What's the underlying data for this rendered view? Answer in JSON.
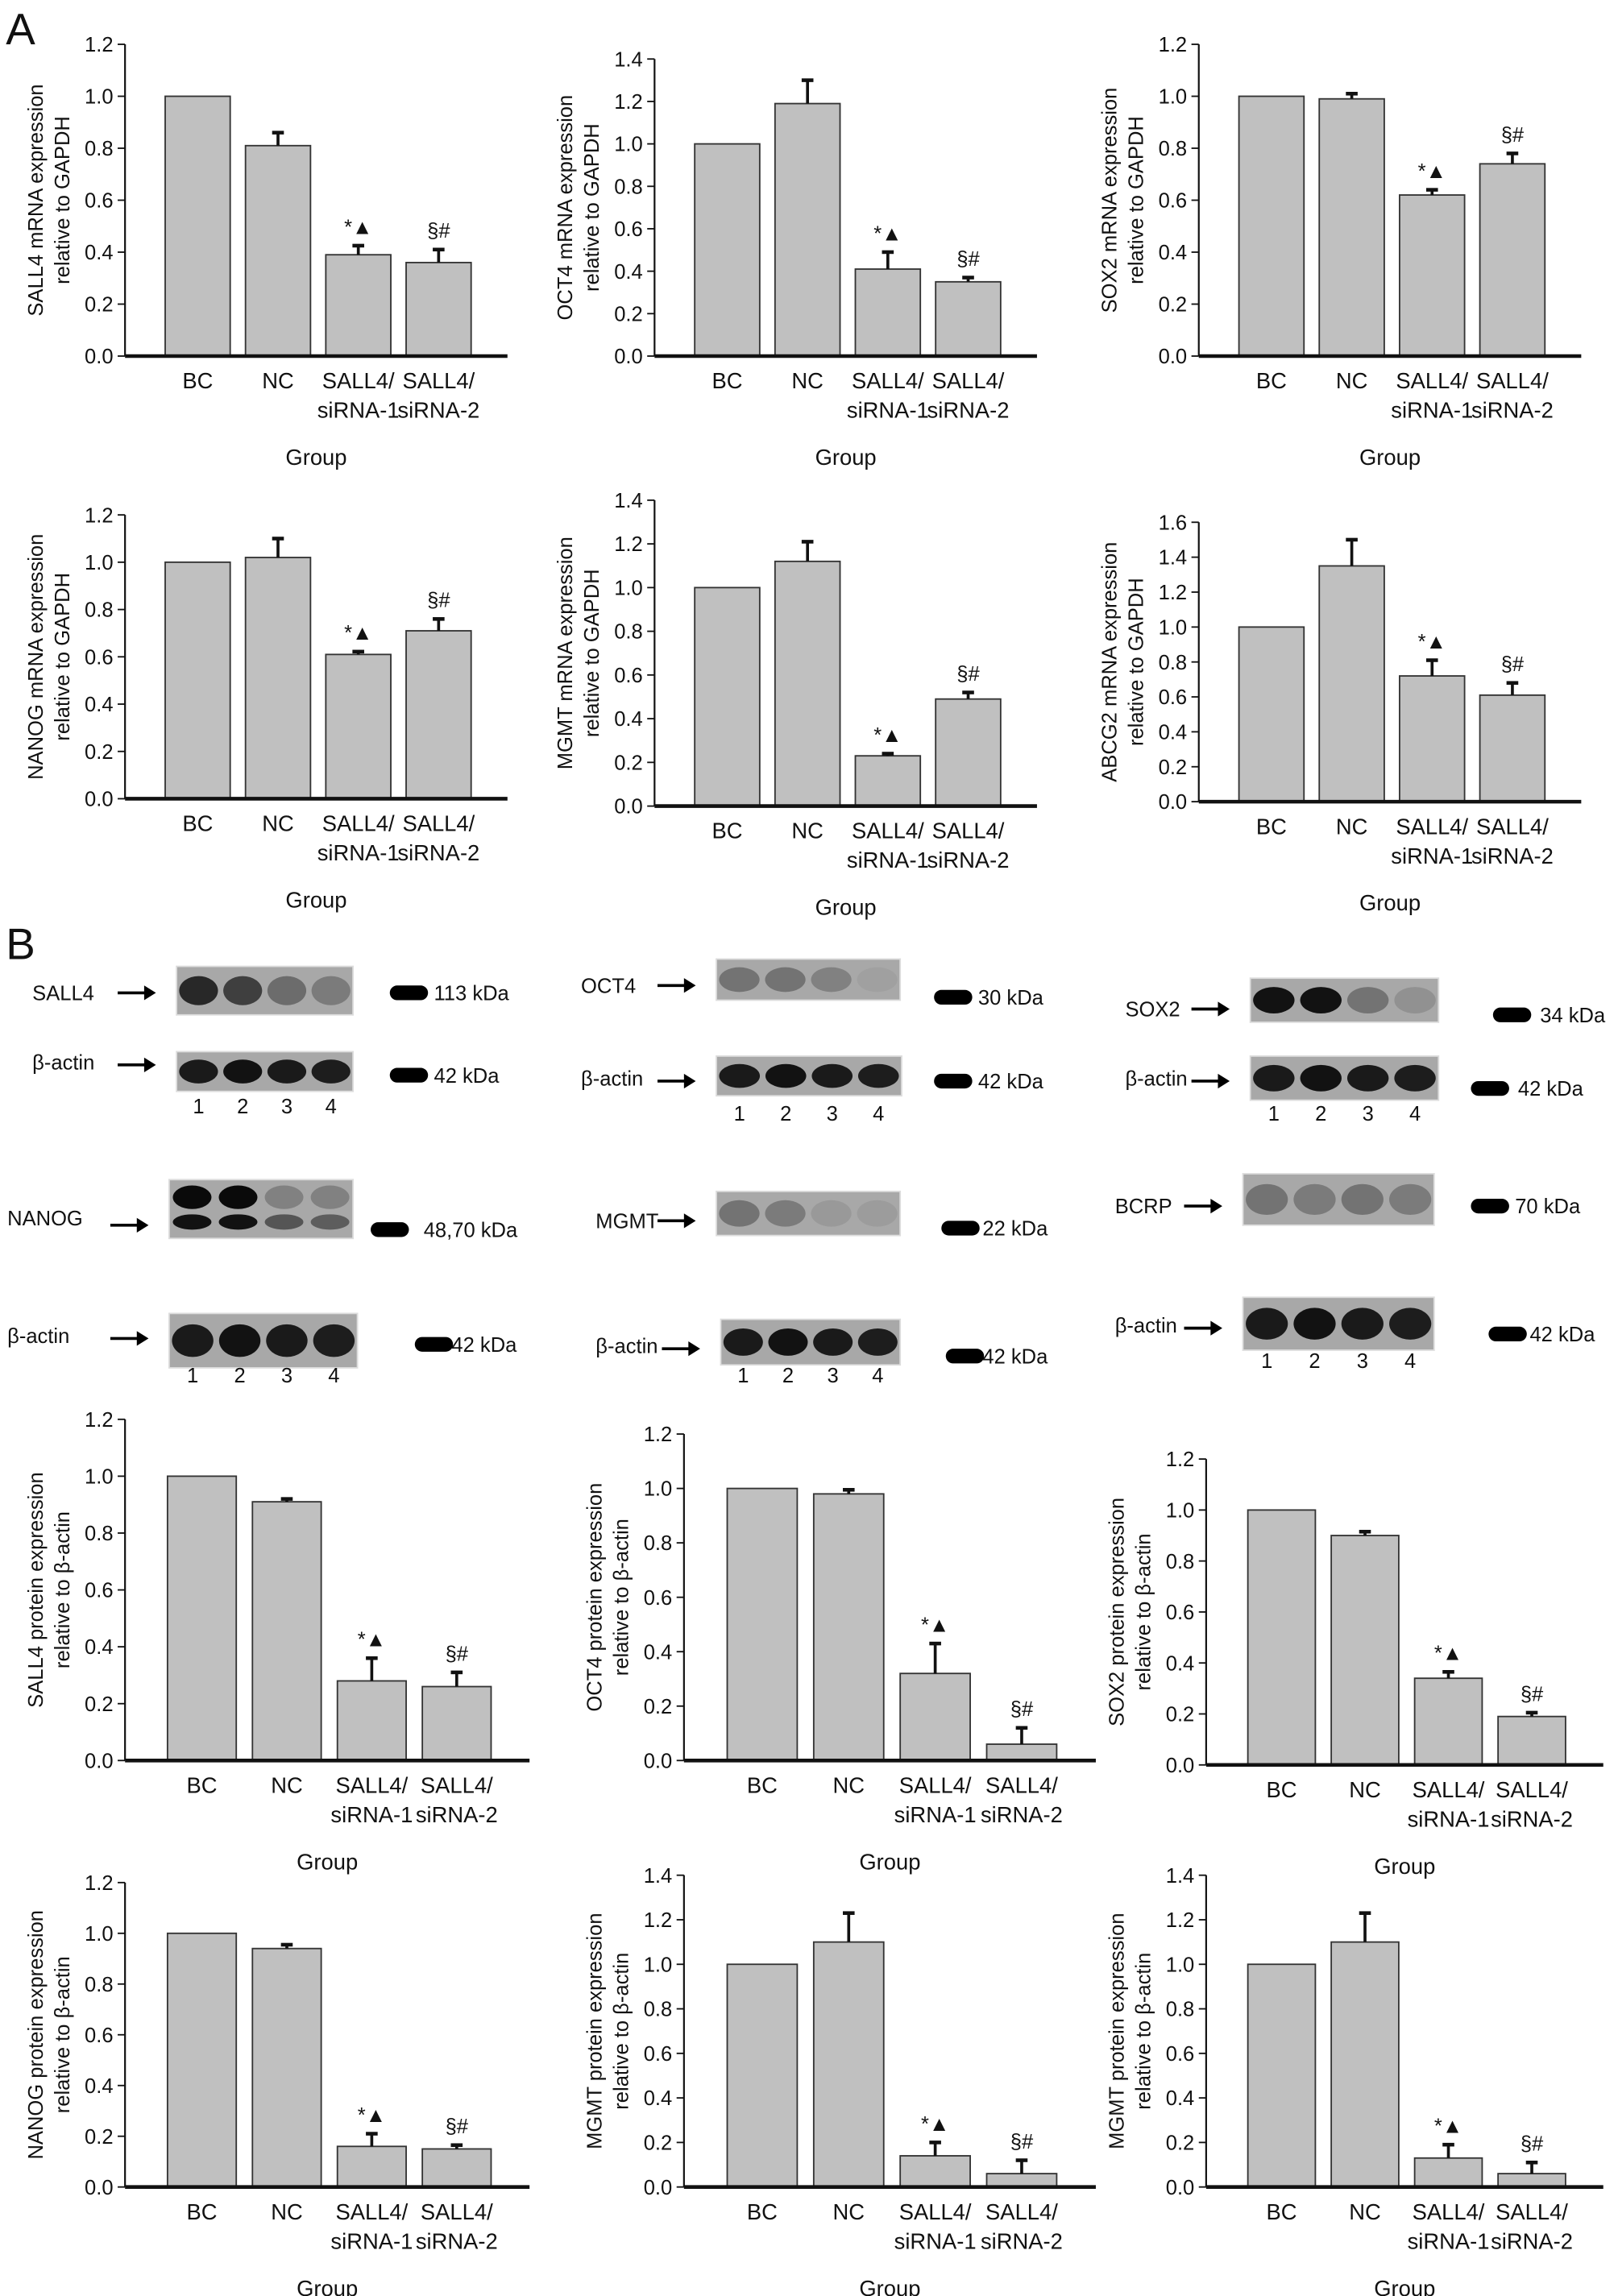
{
  "panel_labels": {
    "a": "A",
    "b": "B"
  },
  "chart_data": [
    {
      "type": "bar",
      "id": "sall4-mrna",
      "ylabel": [
        "SALL4 mRNA expression",
        "relative to GAPDH"
      ],
      "xlabel": "Group",
      "categories": [
        "BC",
        "NC",
        "SALL4/ siRNA-1",
        "SALL4/ siRNA-2"
      ],
      "values": [
        1.0,
        0.81,
        0.39,
        0.36
      ],
      "errors": [
        0,
        0.05,
        0.035,
        0.05
      ],
      "annotations": [
        "",
        "",
        "*▲",
        "§#"
      ],
      "ylim": [
        0,
        1.2
      ],
      "ystep": 0.2
    },
    {
      "type": "bar",
      "id": "oct4-mrna",
      "ylabel": [
        "OCT4 mRNA expression",
        "relative to GAPDH"
      ],
      "xlabel": "Group",
      "categories": [
        "BC",
        "NC",
        "SALL4/ siRNA-1",
        "SALL4/ siRNA-2"
      ],
      "values": [
        1.0,
        1.19,
        0.41,
        0.35
      ],
      "errors": [
        0,
        0.11,
        0.08,
        0.02
      ],
      "annotations": [
        "",
        "",
        "*▲",
        "§#"
      ],
      "ylim": [
        0,
        1.4
      ],
      "ystep": 0.2
    },
    {
      "type": "bar",
      "id": "sox2-mrna",
      "ylabel": [
        "SOX2 mRNA expression",
        "relative to GAPDH"
      ],
      "xlabel": "Group",
      "categories": [
        "BC",
        "NC",
        "SALL4/ siRNA-1",
        "SALL4/ siRNA-2"
      ],
      "values": [
        1.0,
        0.99,
        0.62,
        0.74
      ],
      "errors": [
        0,
        0.02,
        0.02,
        0.04
      ],
      "annotations": [
        "",
        "",
        "*▲",
        "§#"
      ],
      "ylim": [
        0,
        1.2
      ],
      "ystep": 0.2
    },
    {
      "type": "bar",
      "id": "nanog-mrna",
      "ylabel": [
        "NANOG mRNA expression",
        "relative to GAPDH"
      ],
      "xlabel": "Group",
      "categories": [
        "BC",
        "NC",
        "SALL4/ siRNA-1",
        "SALL4/ siRNA-2"
      ],
      "values": [
        1.0,
        1.02,
        0.61,
        0.71
      ],
      "errors": [
        0,
        0.08,
        0.012,
        0.05
      ],
      "annotations": [
        "",
        "",
        "*▲",
        "§#"
      ],
      "ylim": [
        0,
        1.2
      ],
      "ystep": 0.2
    },
    {
      "type": "bar",
      "id": "mgmt-mrna",
      "ylabel": [
        "MGMT mRNA expression",
        "relative to GAPDH"
      ],
      "xlabel": "Group",
      "categories": [
        "BC",
        "NC",
        "SALL4/ siRNA-1",
        "SALL4/ siRNA-2"
      ],
      "values": [
        1.0,
        1.12,
        0.23,
        0.49
      ],
      "errors": [
        0,
        0.09,
        0.01,
        0.03
      ],
      "annotations": [
        "",
        "",
        "*▲",
        "§#"
      ],
      "ylim": [
        0,
        1.4
      ],
      "ystep": 0.2
    },
    {
      "type": "bar",
      "id": "abcg2-mrna",
      "ylabel": [
        "ABCG2 mRNA expression",
        "relative to GAPDH"
      ],
      "xlabel": "Group",
      "categories": [
        "BC",
        "NC",
        "SALL4/ siRNA-1",
        "SALL4/ siRNA-2"
      ],
      "values": [
        1.0,
        1.35,
        0.72,
        0.61
      ],
      "errors": [
        0,
        0.15,
        0.09,
        0.07
      ],
      "annotations": [
        "",
        "",
        "*▲",
        "§#"
      ],
      "ylim": [
        0,
        1.6
      ],
      "ystep": 0.2
    },
    {
      "type": "bar",
      "id": "sall4-protein",
      "ylabel": [
        "SALL4 protein expression",
        "relative to β-actin"
      ],
      "xlabel": "Group",
      "categories": [
        "BC",
        "NC",
        "SALL4/ siRNA-1",
        "SALL4/ siRNA-2"
      ],
      "values": [
        1.0,
        0.91,
        0.28,
        0.26
      ],
      "errors": [
        0,
        0.01,
        0.08,
        0.05
      ],
      "annotations": [
        "",
        "",
        "*▲",
        "§#"
      ],
      "ylim": [
        0,
        1.2
      ],
      "ystep": 0.2
    },
    {
      "type": "bar",
      "id": "oct4-protein",
      "ylabel": [
        "OCT4 protein expression",
        "relative to β-actin"
      ],
      "xlabel": "Group",
      "categories": [
        "BC",
        "NC",
        "SALL4/ siRNA-1",
        "SALL4/ siRNA-2"
      ],
      "values": [
        1.0,
        0.98,
        0.32,
        0.06
      ],
      "errors": [
        0,
        0.015,
        0.11,
        0.06
      ],
      "annotations": [
        "",
        "",
        "*▲",
        "§#"
      ],
      "ylim": [
        0,
        1.2
      ],
      "ystep": 0.2
    },
    {
      "type": "bar",
      "id": "sox2-protein",
      "ylabel": [
        "SOX2 protein expression",
        "relative to β-actin"
      ],
      "xlabel": "Group",
      "categories": [
        "BC",
        "NC",
        "SALL4/ siRNA-1",
        "SALL4/ siRNA-2"
      ],
      "values": [
        1.0,
        0.9,
        0.34,
        0.19
      ],
      "errors": [
        0,
        0.015,
        0.025,
        0.015
      ],
      "annotations": [
        "",
        "",
        "*▲",
        "§#"
      ],
      "ylim": [
        0,
        1.2
      ],
      "ystep": 0.2
    },
    {
      "type": "bar",
      "id": "nanog-protein",
      "ylabel": [
        "NANOG protein expression",
        "relative to β-actin"
      ],
      "xlabel": "Group",
      "categories": [
        "BC",
        "NC",
        "SALL4/ siRNA-1",
        "SALL4/ siRNA-2"
      ],
      "values": [
        1.0,
        0.94,
        0.16,
        0.15
      ],
      "errors": [
        0,
        0.015,
        0.05,
        0.015
      ],
      "annotations": [
        "",
        "",
        "*▲",
        "§#"
      ],
      "ylim": [
        0,
        1.2
      ],
      "ystep": 0.2
    },
    {
      "type": "bar",
      "id": "mgmt-protein",
      "ylabel": [
        "MGMT protein expression",
        "relative to β-actin"
      ],
      "xlabel": "Group",
      "categories": [
        "BC",
        "NC",
        "SALL4/ siRNA-1",
        "SALL4/ siRNA-2"
      ],
      "values": [
        1.0,
        1.1,
        0.14,
        0.06
      ],
      "errors": [
        0,
        0.13,
        0.06,
        0.06
      ],
      "annotations": [
        "",
        "",
        "*▲",
        "§#"
      ],
      "ylim": [
        0,
        1.4
      ],
      "ystep": 0.2
    },
    {
      "type": "bar",
      "id": "mgmt-protein-2",
      "ylabel": [
        "MGMT protein expression",
        "relative to β-actin"
      ],
      "xlabel": "Group",
      "categories": [
        "BC",
        "NC",
        "SALL4/ siRNA-1",
        "SALL4/ siRNA-2"
      ],
      "values": [
        1.0,
        1.1,
        0.13,
        0.06
      ],
      "errors": [
        0,
        0.13,
        0.06,
        0.05
      ],
      "annotations": [
        "",
        "",
        "*▲",
        "§#"
      ],
      "ylim": [
        0,
        1.4
      ],
      "ystep": 0.2
    }
  ],
  "blots": [
    {
      "target": "SALL4",
      "target_kda": "113 kDa",
      "target_intensity": [
        0.85,
        0.7,
        0.4,
        0.3
      ],
      "control": "β-actin",
      "control_kda": "42 kDa",
      "lanes": [
        "1",
        "2",
        "3",
        "4"
      ]
    },
    {
      "target": "OCT4",
      "target_kda": "30 kDa",
      "target_intensity": [
        0.35,
        0.35,
        0.25,
        0.05
      ],
      "control": "β-actin",
      "control_kda": "42 kDa",
      "lanes": [
        "1",
        "2",
        "3",
        "4"
      ]
    },
    {
      "target": "SOX2",
      "target_kda": "34 kDa",
      "target_intensity": [
        1.0,
        1.0,
        0.35,
        0.15
      ],
      "control": "β-actin",
      "control_kda": "42 kDa",
      "lanes": [
        "1",
        "2",
        "3",
        "4"
      ]
    },
    {
      "target": "NANOG",
      "target_kda": "48,70 kDa",
      "target_intensity": [
        1.0,
        1.0,
        0.55,
        0.5
      ],
      "control": "β-actin",
      "control_kda": "42 kDa",
      "lanes": [
        "1",
        "2",
        "3",
        "4"
      ]
    },
    {
      "target": "MGMT",
      "target_kda": "22 kDa",
      "target_intensity": [
        0.35,
        0.3,
        0.1,
        0.08
      ],
      "control": "β-actin",
      "control_kda": "42 kDa",
      "lanes": [
        "1",
        "2",
        "3",
        "4"
      ]
    },
    {
      "target": "BCRP",
      "target_kda": "70 kDa",
      "target_intensity": [
        0.35,
        0.3,
        0.35,
        0.3
      ],
      "control": "β-actin",
      "control_kda": "42 kDa",
      "lanes": [
        "1",
        "2",
        "3",
        "4"
      ]
    }
  ]
}
